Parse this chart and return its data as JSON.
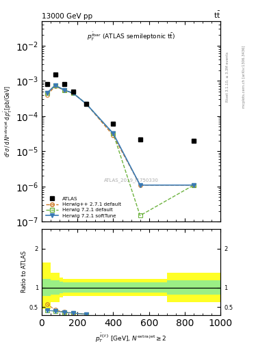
{
  "title_left": "13000 GeV pp",
  "title_right": "tt̅",
  "annotation": "p_T^{\\bar{t}bar} (ATLAS semileptonic ttbar)",
  "watermark": "ATLAS_2019_I1750330",
  "rivet_label": "Rivet 3.1.10, ≥ 3.3M events",
  "mcplots_label": "mcplots.cern.ch [arXiv:1306.3436]",
  "atlas_x": [
    30,
    75,
    125,
    175,
    250,
    400,
    550,
    850
  ],
  "atlas_y": [
    0.0008,
    0.0015,
    0.0008,
    0.0005,
    0.00022,
    6e-05,
    2.2e-05,
    2e-05
  ],
  "herwig_pp_x": [
    30,
    75,
    125,
    175,
    250,
    400,
    550,
    850
  ],
  "herwig_pp_y": [
    0.0004,
    0.0007,
    0.00055,
    0.00045,
    0.00022,
    2.8e-05,
    1.1e-06,
    1.1e-06
  ],
  "herwig_pp_color": "#cc7722",
  "herwig721d_x": [
    30,
    75,
    125,
    175,
    250,
    400,
    550,
    850
  ],
  "herwig721d_y": [
    0.00045,
    0.00075,
    0.00055,
    0.00045,
    0.00022,
    3.2e-05,
    1.5e-07,
    1.1e-06
  ],
  "herwig721d_color": "#6db33f",
  "herwig721s_x": [
    30,
    75,
    125,
    175,
    250,
    400,
    550,
    850
  ],
  "herwig721s_y": [
    0.00045,
    0.00075,
    0.00055,
    0.00045,
    0.00022,
    3.2e-05,
    1.1e-06,
    1.1e-06
  ],
  "herwig721s_color": "#3a7ab5",
  "ratio_x": [
    30,
    75,
    125,
    175,
    250
  ],
  "ratio_herwig_pp": [
    0.58,
    0.43,
    0.38,
    0.35,
    0.32
  ],
  "ratio_herwig721d": [
    0.42,
    0.4,
    0.37,
    0.35,
    0.32
  ],
  "ratio_herwig721s": [
    0.42,
    0.4,
    0.37,
    0.35,
    0.32
  ],
  "band_edges": [
    0,
    50,
    100,
    120,
    650,
    700,
    1000
  ],
  "yellow_lo": [
    0.45,
    0.62,
    0.75,
    0.78,
    0.78,
    0.62,
    0.62
  ],
  "yellow_hi": [
    1.65,
    1.38,
    1.25,
    1.22,
    1.22,
    1.38,
    1.38
  ],
  "green_lo": [
    0.78,
    0.82,
    0.85,
    0.87,
    0.87,
    0.82,
    0.82
  ],
  "green_hi": [
    1.22,
    1.18,
    1.15,
    1.13,
    1.13,
    1.18,
    1.18
  ],
  "xlim": [
    0,
    1000
  ],
  "ylim_main": [
    1e-07,
    0.05
  ],
  "ylim_ratio": [
    0.3,
    2.5
  ],
  "ratio_yticks": [
    0.5,
    1.0,
    2.0
  ]
}
